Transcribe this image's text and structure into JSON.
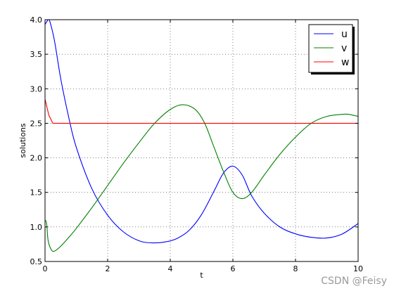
{
  "chart_data": {
    "type": "line",
    "xlabel": "t",
    "ylabel": "solutions",
    "xlim": [
      0,
      10
    ],
    "ylim": [
      0.5,
      4.0
    ],
    "xticks": [
      0,
      2,
      4,
      6,
      8,
      10
    ],
    "yticks": [
      0.5,
      1.0,
      1.5,
      2.0,
      2.5,
      3.0,
      3.5,
      4.0
    ],
    "xtick_labels": [
      "0",
      "2",
      "4",
      "6",
      "8",
      "10"
    ],
    "ytick_labels": [
      "0.5",
      "1.0",
      "1.5",
      "2.0",
      "2.5",
      "3.0",
      "3.5",
      "4.0"
    ],
    "grid": true,
    "legend_position": "top-right",
    "series": [
      {
        "name": "u",
        "color": "#0000ff",
        "x": [
          0,
          0.1,
          0.15,
          0.3,
          0.5,
          0.75,
          1.0,
          1.5,
          2.0,
          2.5,
          3.0,
          3.4,
          3.8,
          4.2,
          4.6,
          5.0,
          5.4,
          5.7,
          6.0,
          6.3,
          6.6,
          7.0,
          7.5,
          8.0,
          8.5,
          9.0,
          9.5,
          10.0
        ],
        "y": [
          3.93,
          4.0,
          3.98,
          3.7,
          3.15,
          2.6,
          2.15,
          1.55,
          1.17,
          0.93,
          0.8,
          0.77,
          0.78,
          0.83,
          0.95,
          1.18,
          1.52,
          1.78,
          1.88,
          1.75,
          1.45,
          1.2,
          1.0,
          0.9,
          0.85,
          0.84,
          0.9,
          1.05
        ]
      },
      {
        "name": "v",
        "color": "#008000",
        "x": [
          0,
          0.05,
          0.1,
          0.2,
          0.3,
          0.5,
          0.8,
          1.0,
          1.5,
          2.0,
          2.5,
          3.0,
          3.5,
          4.0,
          4.4,
          4.8,
          5.1,
          5.4,
          5.7,
          6.0,
          6.3,
          6.6,
          7.0,
          7.5,
          8.0,
          8.5,
          9.0,
          9.5,
          9.7,
          10.0
        ],
        "y": [
          1.1,
          1.05,
          0.8,
          0.67,
          0.65,
          0.72,
          0.87,
          0.98,
          1.28,
          1.6,
          1.92,
          2.22,
          2.5,
          2.7,
          2.77,
          2.7,
          2.5,
          2.15,
          1.8,
          1.5,
          1.41,
          1.5,
          1.75,
          2.05,
          2.3,
          2.5,
          2.6,
          2.63,
          2.63,
          2.6
        ]
      },
      {
        "name": "w",
        "color": "#ff0000",
        "x": [
          0,
          0.12,
          0.25,
          10
        ],
        "y": [
          2.85,
          2.62,
          2.5,
          2.5
        ]
      }
    ]
  },
  "watermark": "CSDN @Feisy"
}
